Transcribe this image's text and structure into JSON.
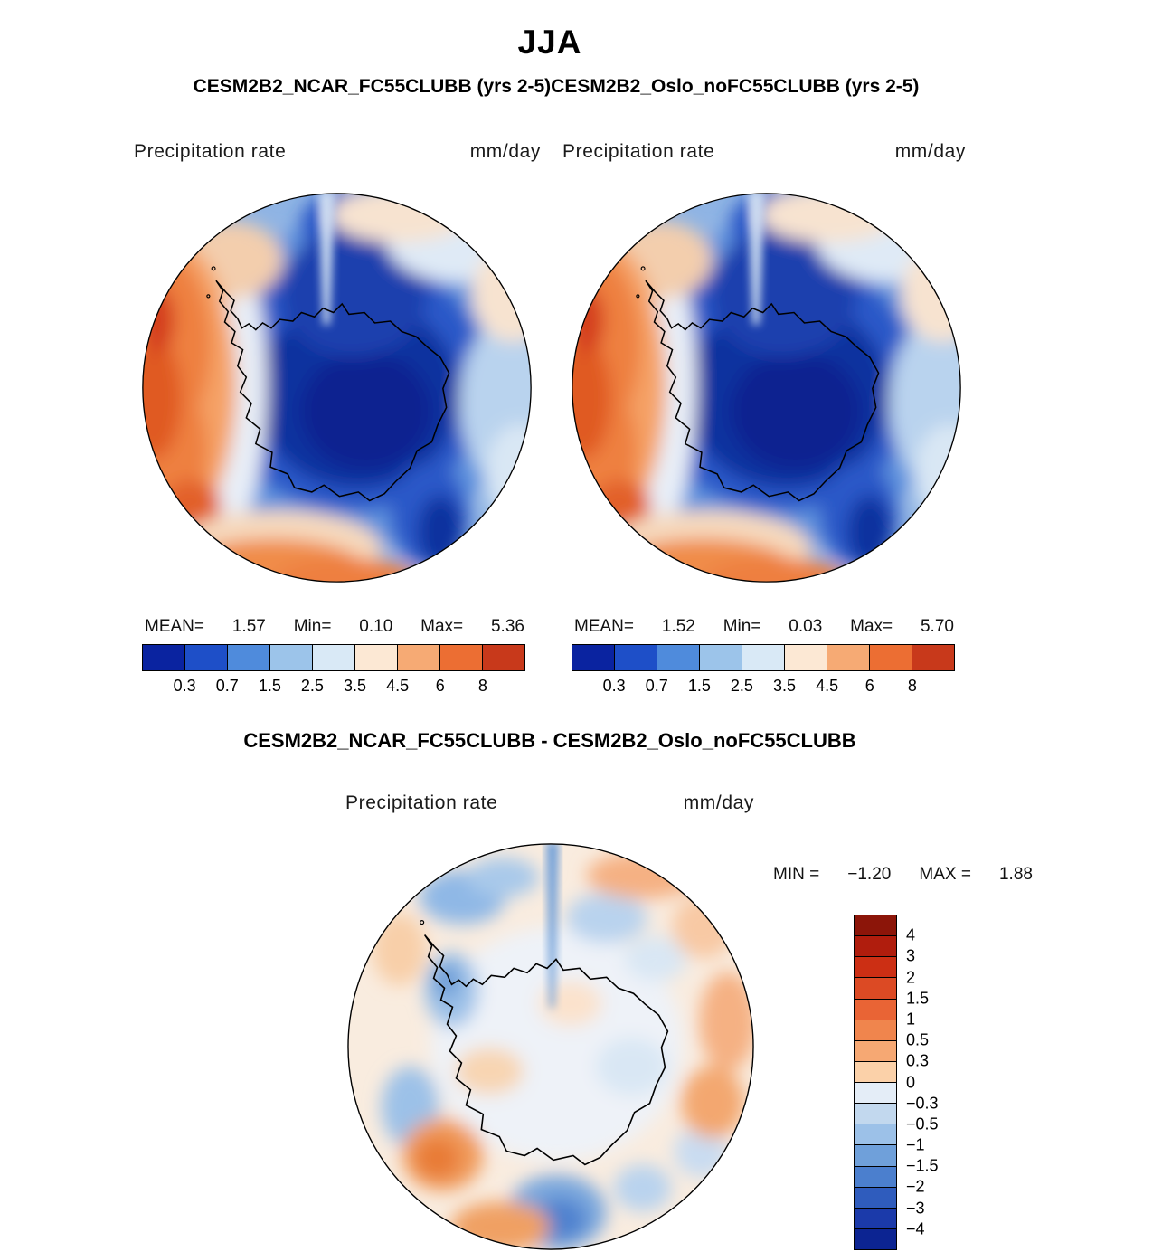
{
  "page": {
    "title": "JJA",
    "subtitle": "CESM2B2_NCAR_FC55CLUBB (yrs 2-5)CESM2B2_Oslo_noFC55CLUBB (yrs 2-5)",
    "diff_title": "CESM2B2_NCAR_FC55CLUBB - CESM2B2_Oslo_noFC55CLUBB"
  },
  "panels": {
    "left": {
      "var_label": "Precipitation rate",
      "units": "mm/day",
      "mean_label": "MEAN=",
      "mean": "1.57",
      "min_label": "Min=",
      "min": "0.10",
      "max_label": "Max=",
      "max": "5.36"
    },
    "right": {
      "var_label": "Precipitation rate",
      "units": "mm/day",
      "mean_label": "MEAN=",
      "mean": "1.52",
      "min_label": "Min=",
      "min": "0.03",
      "max_label": "Max=",
      "max": "5.70"
    },
    "diff": {
      "var_label": "Precipitation rate",
      "units": "mm/day",
      "min_label": "MIN =",
      "min": "−1.20",
      "max_label": "MAX =",
      "max": "1.88"
    }
  },
  "precip_colorbar": {
    "tick_labels": [
      "0.3",
      "0.7",
      "1.5",
      "2.5",
      "3.5",
      "4.5",
      "6",
      "8"
    ],
    "colors": [
      "#0a23a0",
      "#1e4fc8",
      "#4f8bdc",
      "#9cc4ea",
      "#d9e9f6",
      "#fce8d4",
      "#f6aa74",
      "#ec6e33",
      "#c8391b"
    ]
  },
  "diff_colorbar": {
    "tick_labels": [
      "4",
      "3",
      "2",
      "1.5",
      "1",
      "0.5",
      "0.3",
      "0",
      "−0.3",
      "−0.5",
      "−1",
      "−1.5",
      "−2",
      "−3",
      "−4"
    ],
    "colors": [
      "#8c1509",
      "#b01d0d",
      "#cc2f14",
      "#dc4a24",
      "#e96435",
      "#f0854d",
      "#f6a873",
      "#fbd1a9",
      "#e4edf7",
      "#c2d8ee",
      "#9cc1e8",
      "#6fa0da",
      "#4b7fce",
      "#2f5cbd",
      "#1b3aaa",
      "#0c2492"
    ]
  },
  "chart_data": [
    {
      "type": "heatmap",
      "subtype": "south-polar-stereographic-map",
      "season": "JJA",
      "title": "CESM2B2_NCAR_FC55CLUBB (yrs 2-5)",
      "variable": "Precipitation rate",
      "units": "mm/day",
      "region": "Antarctica / Southern Ocean",
      "stats": {
        "mean": 1.57,
        "min": 0.1,
        "max": 5.36
      },
      "contour_levels": [
        0.3,
        0.7,
        1.5,
        2.5,
        3.5,
        4.5,
        6,
        8
      ],
      "palette": "blue-to-red, low precip (dark blue) over continent, high precip (orange/red) over western ocean",
      "legend_position": "below"
    },
    {
      "type": "heatmap",
      "subtype": "south-polar-stereographic-map",
      "season": "JJA",
      "title": "CESM2B2_Oslo_noFC55CLUBB (yrs 2-5)",
      "variable": "Precipitation rate",
      "units": "mm/day",
      "region": "Antarctica / Southern Ocean",
      "stats": {
        "mean": 1.52,
        "min": 0.03,
        "max": 5.7
      },
      "contour_levels": [
        0.3,
        0.7,
        1.5,
        2.5,
        3.5,
        4.5,
        6,
        8
      ],
      "palette": "blue-to-red, low precip (dark blue) over continent, high precip (orange/red) over western ocean",
      "legend_position": "below"
    },
    {
      "type": "heatmap",
      "subtype": "south-polar-stereographic-map",
      "season": "JJA",
      "title": "CESM2B2_NCAR_FC55CLUBB - CESM2B2_Oslo_noFC55CLUBB",
      "variable": "Precipitation rate difference",
      "units": "mm/day",
      "region": "Antarctica / Southern Ocean",
      "stats": {
        "min": -1.2,
        "max": 1.88
      },
      "contour_levels": [
        -4,
        -3,
        -2,
        -1.5,
        -1,
        -0.5,
        -0.3,
        0,
        0.3,
        0.5,
        1,
        1.5,
        2,
        3,
        4
      ],
      "palette": "diverging blue-white-red",
      "legend_position": "right"
    }
  ]
}
